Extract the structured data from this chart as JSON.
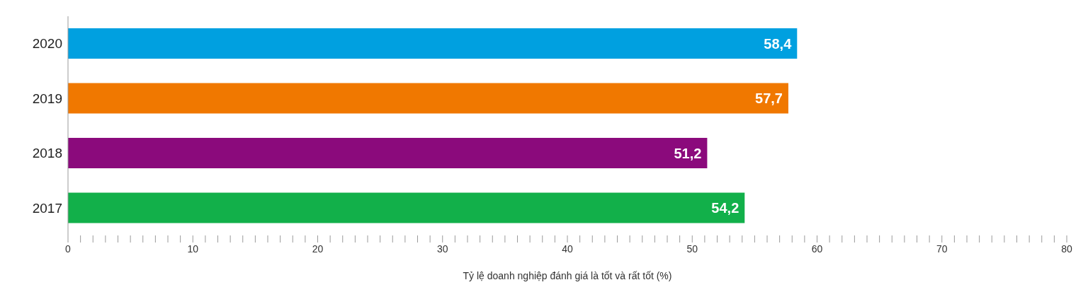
{
  "chart_data": {
    "type": "bar",
    "orientation": "horizontal",
    "xlabel": "Tỷ lệ doanh nghiệp đánh giá là tốt và rất tốt (%)",
    "categories": [
      "2020",
      "2019",
      "2018",
      "2017"
    ],
    "values": [
      58.4,
      57.7,
      51.2,
      54.2
    ],
    "colors": [
      "#00a0e0",
      "#f07800",
      "#8b0a7c",
      "#12b04a"
    ],
    "value_labels": [
      "58,4",
      "57,7",
      "51,2",
      "54,2"
    ],
    "xlim": [
      0,
      80
    ],
    "xticks": [
      0,
      {
        "value": 1,
        "label": null
      },
      {
        "value": 2,
        "label": null
      },
      {
        "value": 3,
        "label": null
      },
      {
        "value": 4,
        "label": null
      },
      {
        "value": 5,
        "label": null
      },
      {
        "value": 6,
        "label": null
      },
      {
        "value": 7,
        "label": null
      },
      {
        "value": 8,
        "label": null
      },
      {
        "value": 9,
        "label": null
      },
      10,
      {
        "value": 11,
        "label": null
      },
      {
        "value": 12,
        "label": null
      },
      {
        "value": 13,
        "label": null
      },
      {
        "value": 14,
        "label": null
      },
      {
        "value": 15,
        "label": null
      },
      {
        "value": 16,
        "label": null
      },
      {
        "value": 17,
        "label": null
      },
      {
        "value": 18,
        "label": null
      },
      {
        "value": 19,
        "label": null
      },
      20,
      {
        "value": 21,
        "label": null
      },
      {
        "value": 22,
        "label": null
      },
      {
        "value": 23,
        "label": null
      },
      {
        "value": 24,
        "label": null
      },
      {
        "value": 25,
        "label": null
      },
      {
        "value": 26,
        "label": null
      },
      {
        "value": 27,
        "label": null
      },
      {
        "value": 28,
        "label": null
      },
      {
        "value": 29,
        "label": null
      },
      30,
      {
        "value": 31,
        "label": null
      },
      {
        "value": 32,
        "label": null
      },
      {
        "value": 33,
        "label": null
      },
      {
        "value": 34,
        "label": null
      },
      {
        "value": 35,
        "label": null
      },
      {
        "value": 36,
        "label": null
      },
      {
        "value": 37,
        "label": null
      },
      {
        "value": 38,
        "label": null
      },
      {
        "value": 39,
        "label": null
      },
      40,
      {
        "value": 41,
        "label": null
      },
      {
        "value": 42,
        "label": null
      },
      {
        "value": 43,
        "label": null
      },
      {
        "value": 44,
        "label": null
      },
      {
        "value": 45,
        "label": null
      },
      {
        "value": 46,
        "label": null
      },
      {
        "value": 47,
        "label": null
      },
      {
        "value": 48,
        "label": null
      },
      {
        "value": 49,
        "label": null
      },
      50,
      {
        "value": 51,
        "label": null
      },
      {
        "value": 52,
        "label": null
      },
      {
        "value": 53,
        "label": null
      },
      {
        "value": 54,
        "label": null
      },
      {
        "value": 55,
        "label": null
      },
      {
        "value": 56,
        "label": null
      },
      {
        "value": 57,
        "label": null
      },
      {
        "value": 58,
        "label": null
      },
      {
        "value": 59,
        "label": null
      },
      60,
      {
        "value": 61,
        "label": null
      },
      {
        "value": 62,
        "label": null
      },
      {
        "value": 63,
        "label": null
      },
      {
        "value": 64,
        "label": null
      },
      {
        "value": 65,
        "label": null
      },
      {
        "value": 66,
        "label": null
      },
      {
        "value": 67,
        "label": null
      },
      {
        "value": 68,
        "label": null
      },
      {
        "value": 69,
        "label": null
      },
      70,
      {
        "value": 71,
        "label": null
      },
      {
        "value": 72,
        "label": null
      },
      {
        "value": 73,
        "label": null
      },
      {
        "value": 74,
        "label": null
      },
      {
        "value": 75,
        "label": null
      },
      {
        "value": 76,
        "label": null
      },
      {
        "value": 77,
        "label": null
      },
      {
        "value": 78,
        "label": null
      },
      {
        "value": 79,
        "label": null
      },
      80
    ]
  }
}
